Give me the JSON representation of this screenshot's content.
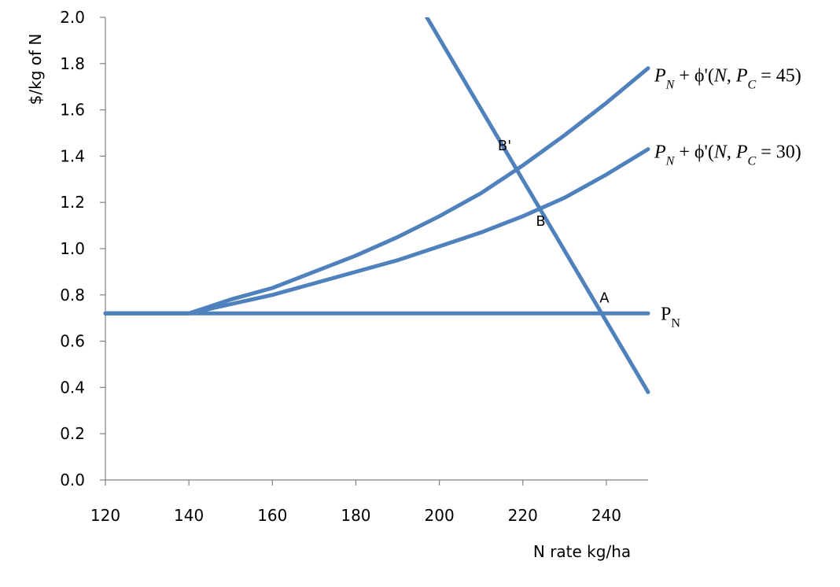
{
  "chart_data": {
    "type": "line",
    "title": "",
    "xlabel": "N rate kg/ha",
    "ylabel": "$/kg of N",
    "xlim": [
      120,
      250
    ],
    "ylim": [
      0.0,
      2.0
    ],
    "x_ticks": [
      120,
      140,
      160,
      180,
      200,
      220,
      240
    ],
    "x_tick_labels": [
      "120",
      "140",
      "160",
      "180",
      "200",
      "220",
      "240"
    ],
    "y_ticks": [
      0.0,
      0.2,
      0.4,
      0.6,
      0.8,
      1.0,
      1.2,
      1.4,
      1.6,
      1.8,
      2.0
    ],
    "y_tick_labels": [
      "0.0",
      "0.2",
      "0.4",
      "0.6",
      "0.8",
      "1.0",
      "1.2",
      "1.4",
      "1.6",
      "1.8",
      "2.0"
    ],
    "grid": false,
    "legend": "none",
    "color": "#4f81bd",
    "series": [
      {
        "label": {
          "p": "P",
          "p_sub": "N",
          "plus": " + ϕ'(",
          "n": "N",
          "comma": ", ",
          "pc": "P",
          "pc_sub": "C",
          "eq": " = 45)"
        },
        "x": [
          120,
          140,
          150,
          160,
          170,
          180,
          190,
          200,
          210,
          220,
          230,
          240,
          250
        ],
        "y": [
          0.72,
          0.72,
          0.78,
          0.83,
          0.9,
          0.97,
          1.05,
          1.14,
          1.24,
          1.36,
          1.49,
          1.63,
          1.78
        ]
      },
      {
        "label": {
          "p": "P",
          "p_sub": "N",
          "plus": " + ϕ'(",
          "n": "N",
          "comma": ", ",
          "pc": "P",
          "pc_sub": "C",
          "eq": " = 30)"
        },
        "x": [
          120,
          140,
          150,
          160,
          170,
          180,
          190,
          200,
          210,
          220,
          230,
          240,
          250
        ],
        "y": [
          0.72,
          0.72,
          0.76,
          0.8,
          0.85,
          0.9,
          0.95,
          1.01,
          1.07,
          1.14,
          1.22,
          1.32,
          1.43
        ]
      },
      {
        "label": {
          "p": "P",
          "p_sub": "N"
        },
        "x": [
          120,
          250
        ],
        "y": [
          0.72,
          0.72
        ]
      },
      {
        "label": null,
        "x": [
          197,
          250
        ],
        "y": [
          2.0,
          0.38
        ]
      }
    ],
    "annotations": [
      {
        "text": "B'",
        "x": 217,
        "y": 1.35
      },
      {
        "text": "B",
        "x": 222,
        "y": 1.18
      },
      {
        "text": "A",
        "x": 238,
        "y": 0.72
      }
    ]
  }
}
